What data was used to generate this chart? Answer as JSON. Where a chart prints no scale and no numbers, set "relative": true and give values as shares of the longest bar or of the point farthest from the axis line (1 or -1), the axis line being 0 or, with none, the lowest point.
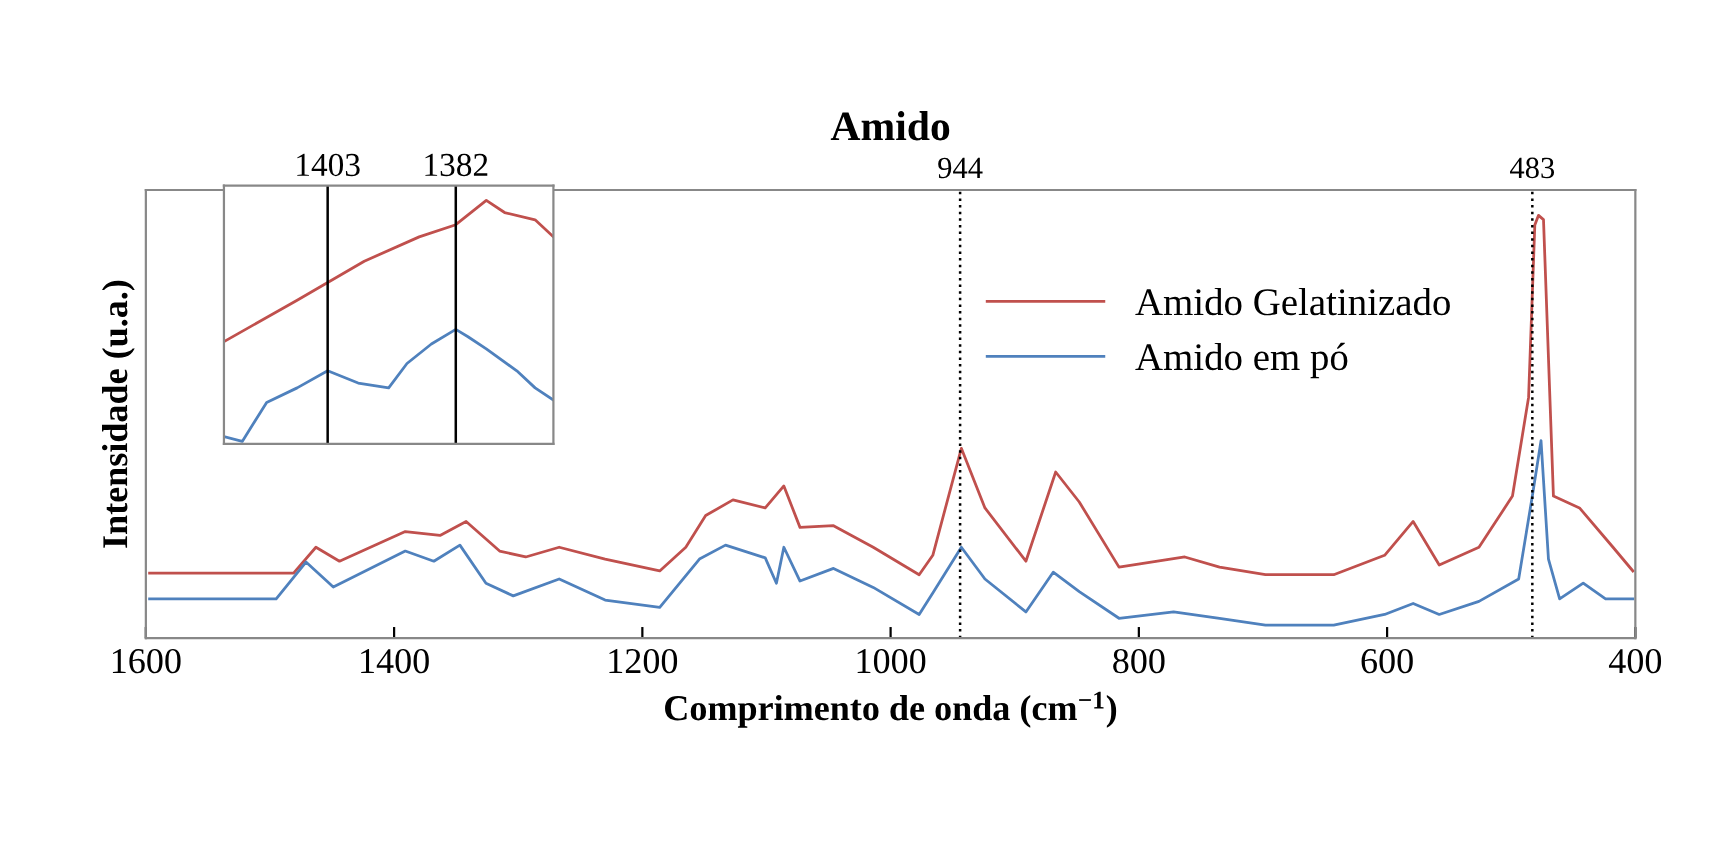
{
  "chart_data": [
    {
      "type": "line",
      "title": "Amido",
      "xlabel": "Comprimento de onda (cm$^{−1}$)",
      "ylabel": "Intensidade (u.a.)",
      "relative": true,
      "xlim": [
        1600,
        400
      ],
      "xticks": [
        1600,
        1400,
        1200,
        1000,
        800,
        600,
        400
      ],
      "legend": "top right",
      "line_style": "solid",
      "marker": "none",
      "ref_lines": [
        {
          "axis": "x",
          "value": 944,
          "label": "944",
          "color": "#000000",
          "line_style": "dotted"
        },
        {
          "axis": "x",
          "value": 483,
          "label": "483",
          "color": "#000000",
          "line_style": "dotted"
        }
      ],
      "series": [
        {
          "name": "Amido Gelatinizado",
          "color": "#c0504d",
          "x": [
            1597,
            1481,
            1463,
            1444,
            1391,
            1363,
            1342,
            1315,
            1294,
            1267,
            1230,
            1186,
            1165,
            1149,
            1127,
            1101,
            1086,
            1073,
            1046,
            1014,
            977,
            966,
            943,
            924,
            891,
            867,
            848,
            816,
            763,
            735,
            698,
            643,
            602,
            579,
            558,
            526,
            499,
            486,
            481,
            478,
            474,
            466,
            445,
            418,
            402
          ],
          "values": [
            0.154,
            0.154,
            0.215,
            0.182,
            0.252,
            0.243,
            0.276,
            0.206,
            0.192,
            0.215,
            0.187,
            0.159,
            0.215,
            0.29,
            0.327,
            0.308,
            0.36,
            0.262,
            0.266,
            0.215,
            0.15,
            0.196,
            0.449,
            0.308,
            0.182,
            0.393,
            0.322,
            0.168,
            0.192,
            0.168,
            0.15,
            0.15,
            0.196,
            0.276,
            0.173,
            0.215,
            0.336,
            0.57,
            0.977,
            1.0,
            0.99,
            0.336,
            0.308,
            0.215,
            0.159
          ]
        },
        {
          "name": "Amido em pó",
          "color": "#4f81bd",
          "x": [
            1597,
            1495,
            1471,
            1449,
            1391,
            1368,
            1347,
            1326,
            1304,
            1267,
            1230,
            1186,
            1154,
            1133,
            1101,
            1092,
            1086,
            1073,
            1046,
            1014,
            977,
            966,
            943,
            924,
            891,
            869,
            848,
            816,
            772,
            735,
            698,
            643,
            602,
            579,
            558,
            526,
            494,
            483,
            476,
            470,
            461,
            442,
            424,
            402
          ],
          "values": [
            0.093,
            0.093,
            0.18,
            0.121,
            0.206,
            0.182,
            0.22,
            0.13,
            0.1,
            0.14,
            0.09,
            0.073,
            0.187,
            0.22,
            0.19,
            0.13,
            0.215,
            0.135,
            0.165,
            0.12,
            0.056,
            0.107,
            0.215,
            0.14,
            0.062,
            0.156,
            0.11,
            0.047,
            0.062,
            0.047,
            0.031,
            0.031,
            0.056,
            0.082,
            0.056,
            0.087,
            0.14,
            0.336,
            0.467,
            0.187,
            0.093,
            0.13,
            0.093,
            0.093
          ]
        }
      ]
    },
    {
      "type": "line",
      "relative": true,
      "xlim": [
        1420,
        1366
      ],
      "xticks": [
        1403,
        1382
      ],
      "tick_labels": "x",
      "line_style": "solid",
      "marker": "none",
      "ref_lines": [
        {
          "axis": "x",
          "value": 1382,
          "color": "#000000",
          "line_style": "solid"
        },
        {
          "axis": "x",
          "value": 1403,
          "color": "#000000",
          "line_style": "solid"
        }
      ],
      "series": [
        {
          "color": "#c0504d",
          "x": [
            1420,
            1408,
            1397,
            1388,
            1382,
            1377,
            1374,
            1369,
            1366
          ],
          "values": [
            0.42,
            0.59,
            0.75,
            0.85,
            0.9,
            1.0,
            0.95,
            0.92,
            0.85
          ]
        },
        {
          "color": "#4f81bd",
          "x": [
            1420,
            1417,
            1413,
            1408,
            1403,
            1398,
            1393,
            1390,
            1386,
            1382,
            1380,
            1377,
            1372,
            1369,
            1366
          ],
          "values": [
            0.03,
            0.01,
            0.17,
            0.23,
            0.3,
            0.25,
            0.23,
            0.33,
            0.41,
            0.47,
            0.44,
            0.39,
            0.3,
            0.23,
            0.18
          ]
        }
      ]
    }
  ]
}
